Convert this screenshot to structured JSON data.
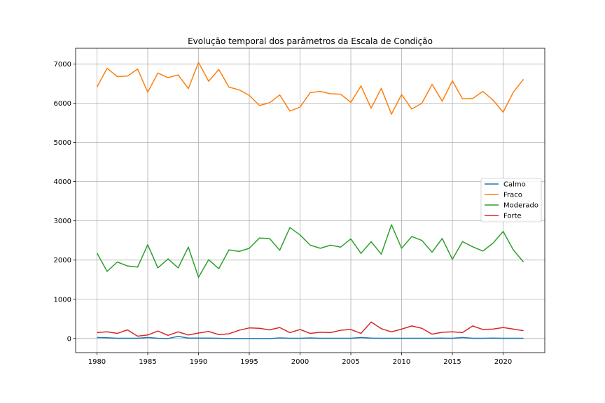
{
  "chart_data": {
    "type": "line",
    "title": "Evolução temporal dos parâmetros da Escala de Condição",
    "xlabel": "",
    "ylabel": "",
    "x": [
      1980,
      1981,
      1982,
      1983,
      1984,
      1985,
      1986,
      1987,
      1988,
      1989,
      1990,
      1991,
      1992,
      1993,
      1994,
      1995,
      1996,
      1997,
      1998,
      1999,
      2000,
      2001,
      2002,
      2003,
      2004,
      2005,
      2006,
      2007,
      2008,
      2009,
      2010,
      2011,
      2012,
      2013,
      2014,
      2015,
      2016,
      2017,
      2018,
      2019,
      2020,
      2021,
      2022
    ],
    "xlim": [
      1977.9,
      2024.1
    ],
    "ylim": [
      -360,
      7400
    ],
    "xticks": [
      1980,
      1985,
      1990,
      1995,
      2000,
      2005,
      2010,
      2015,
      2020
    ],
    "yticks": [
      0,
      1000,
      2000,
      3000,
      4000,
      5000,
      6000,
      7000
    ],
    "grid": true,
    "legend_position": "center-right",
    "series": [
      {
        "name": "Calmo",
        "color": "#1f77b4",
        "values": [
          25,
          20,
          5,
          5,
          5,
          25,
          5,
          0,
          55,
          10,
          10,
          10,
          5,
          0,
          0,
          0,
          0,
          0,
          15,
          5,
          5,
          15,
          5,
          5,
          5,
          5,
          25,
          10,
          5,
          5,
          5,
          5,
          5,
          5,
          10,
          5,
          25,
          5,
          5,
          10,
          5,
          5,
          5
        ]
      },
      {
        "name": "Fraco",
        "color": "#ff7f0e",
        "values": [
          6410,
          6890,
          6680,
          6690,
          6870,
          6280,
          6770,
          6650,
          6720,
          6370,
          7040,
          6560,
          6860,
          6410,
          6340,
          6200,
          5940,
          6010,
          6210,
          5800,
          5900,
          6270,
          6300,
          6240,
          6230,
          6020,
          6440,
          5870,
          6380,
          5720,
          6220,
          5850,
          6000,
          6480,
          6050,
          6570,
          6110,
          6120,
          6300,
          6080,
          5770,
          6280,
          6610
        ]
      },
      {
        "name": "Moderado",
        "color": "#2ca02c",
        "values": [
          2180,
          1710,
          1950,
          1850,
          1820,
          2390,
          1800,
          2030,
          1800,
          2330,
          1560,
          2010,
          1780,
          2260,
          2220,
          2300,
          2560,
          2550,
          2250,
          2830,
          2640,
          2380,
          2300,
          2380,
          2330,
          2540,
          2170,
          2470,
          2150,
          2900,
          2300,
          2600,
          2500,
          2200,
          2550,
          2020,
          2470,
          2340,
          2230,
          2430,
          2730,
          2260,
          1950
        ]
      },
      {
        "name": "Forte",
        "color": "#d62728",
        "values": [
          150,
          170,
          130,
          220,
          60,
          90,
          190,
          80,
          170,
          90,
          140,
          180,
          100,
          120,
          210,
          270,
          260,
          220,
          280,
          150,
          230,
          130,
          160,
          150,
          210,
          230,
          130,
          420,
          250,
          170,
          240,
          320,
          260,
          110,
          160,
          170,
          150,
          320,
          230,
          240,
          280,
          240,
          200
        ]
      }
    ]
  }
}
